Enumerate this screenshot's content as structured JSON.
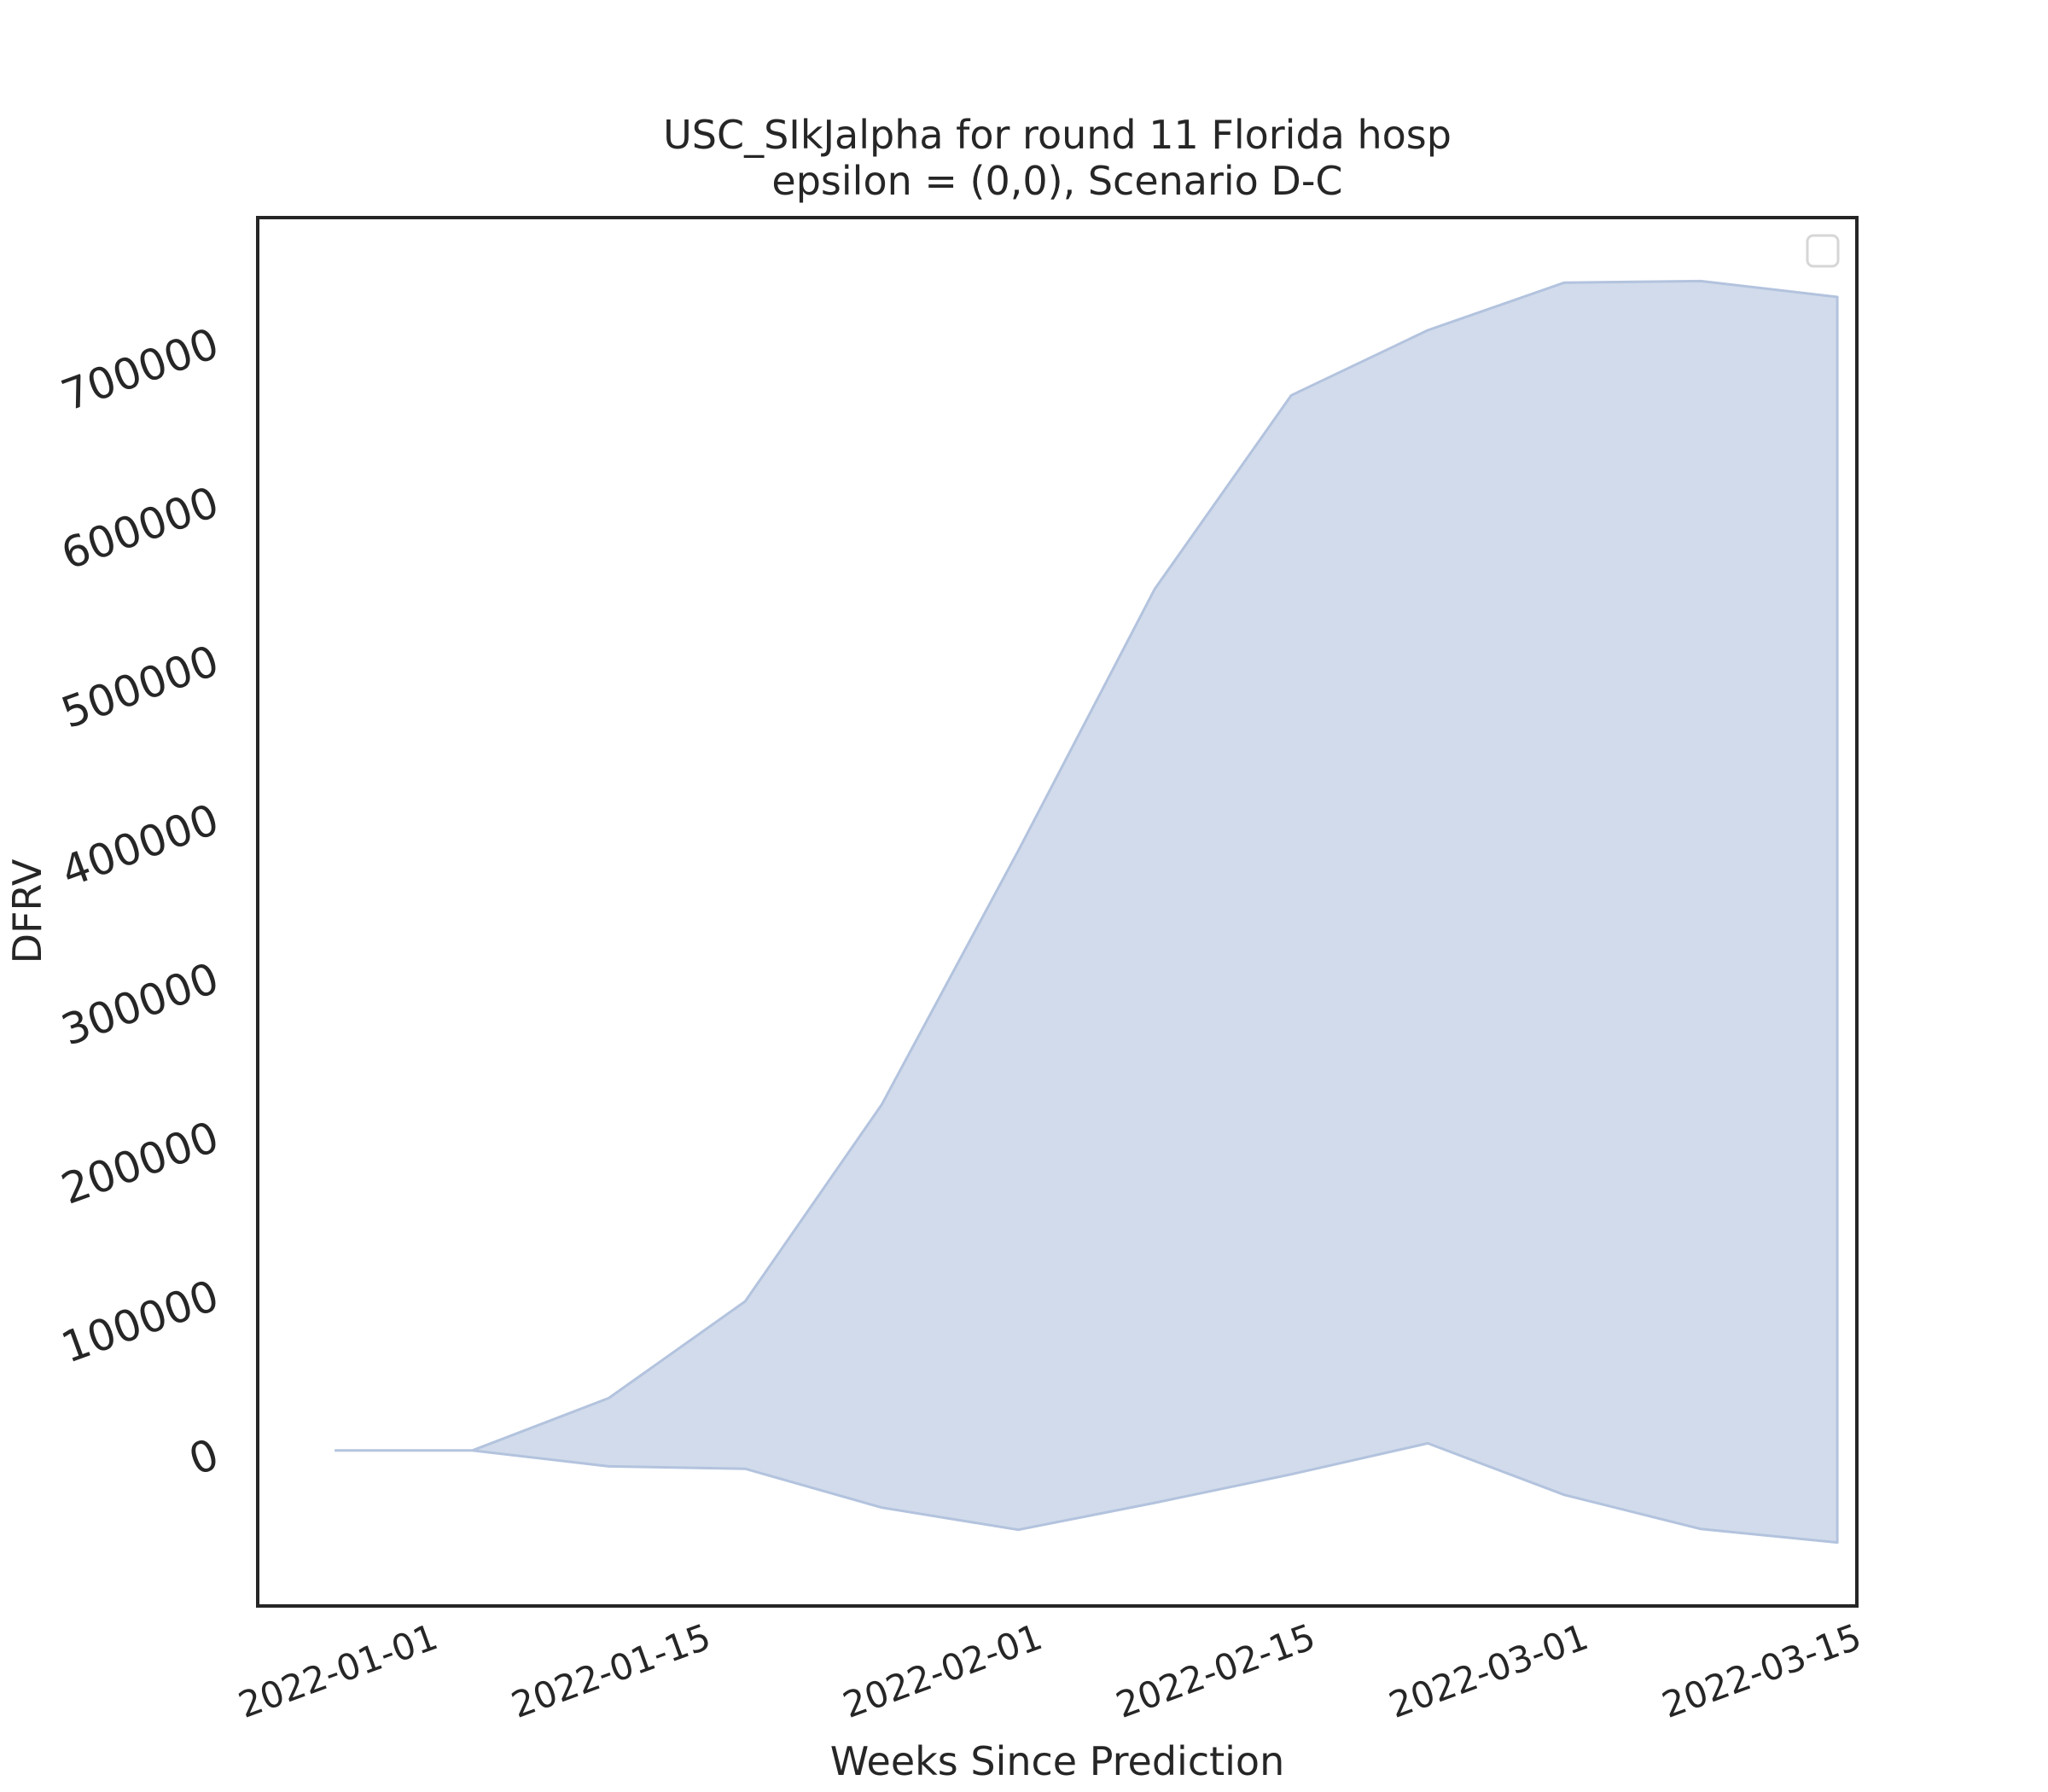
{
  "chart_data": {
    "type": "area",
    "title_line1": "USC_SIkJalpha for round 11 Florida hosp",
    "title_line2": "epsilon = (0,0), Scenario D-C",
    "xlabel": "Weeks Since Prediction",
    "ylabel": "DFRV",
    "x_ticks": [
      "2022-01-01",
      "2022-01-15",
      "2022-02-01",
      "2022-02-15",
      "2022-03-01",
      "2022-03-15"
    ],
    "y_ticks": [
      0,
      100000,
      200000,
      300000,
      400000,
      500000,
      600000,
      700000
    ],
    "xlim": [
      "2021-12-23",
      "2022-03-15"
    ],
    "ylim": [
      -95000,
      780000
    ],
    "grid": false,
    "legend": {
      "placement": "upper right",
      "entries": []
    },
    "fill_color": "#b3c3de",
    "fill_opacity": 0.6,
    "series": [
      {
        "x": [
          "2021-12-27",
          "2022-01-03",
          "2022-01-10",
          "2022-01-17",
          "2022-01-24",
          "2022-01-31",
          "2022-02-07",
          "2022-02-14",
          "2022-02-21",
          "2022-02-28",
          "2022-03-07",
          "2022-03-14"
        ],
        "lower": [
          3000,
          3000,
          -7000,
          -8500,
          -33000,
          -47000,
          -30000,
          -12000,
          7500,
          -25000,
          -46500,
          -55000
        ],
        "upper": [
          3000,
          3000,
          36000,
          97000,
          221000,
          381000,
          546000,
          668000,
          709000,
          739000,
          740000,
          730000
        ]
      }
    ]
  }
}
